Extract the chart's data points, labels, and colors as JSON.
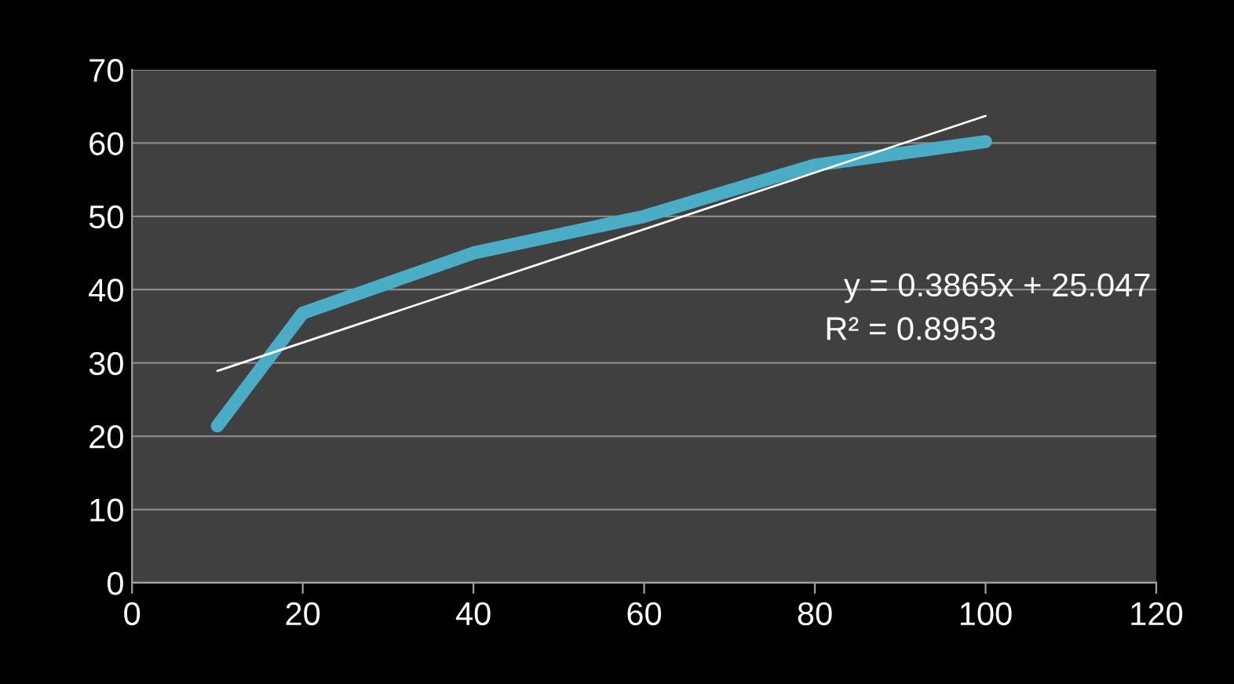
{
  "chart_data": {
    "type": "line",
    "x": [
      10,
      20,
      40,
      60,
      80,
      100
    ],
    "series": [
      {
        "color": "#4bacc6",
        "values": [
          21.4,
          36.8,
          45,
          50,
          57,
          60.2
        ]
      },
      {
        "type": "line",
        "color": "#ffffff",
        "x": [
          10,
          100
        ],
        "values": [
          28.91,
          63.7
        ]
      }
    ],
    "xlim": [
      0,
      120
    ],
    "xticks": [
      0,
      20,
      40,
      60,
      80,
      100,
      120
    ],
    "ylim": [
      0,
      70
    ],
    "yticks": [
      0,
      10,
      20,
      30,
      40,
      50,
      60,
      70
    ],
    "grid": "y",
    "legend": false,
    "marker": "none",
    "line_style": "solid",
    "annotations": [
      "y = 0.3865x + 25.047",
      "R² = 0.8953"
    ]
  }
}
